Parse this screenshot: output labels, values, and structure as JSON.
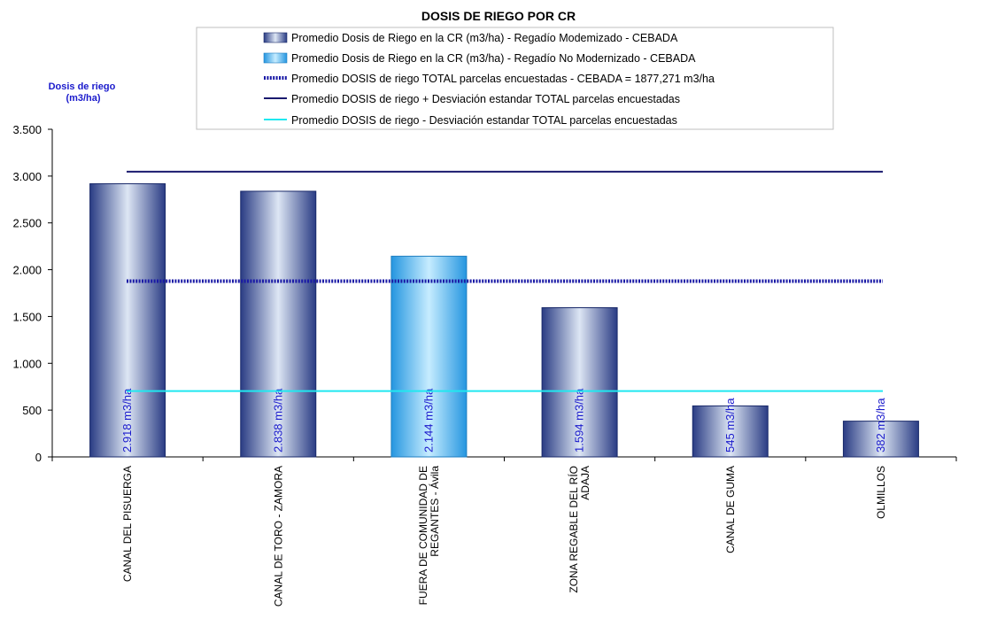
{
  "chart_data": {
    "type": "bar",
    "title": "DOSIS DE RIEGO POR CR",
    "ylabel_lines": [
      "Dosis de riego",
      "(m3/ha)"
    ],
    "ylim": [
      0,
      3500
    ],
    "yticks": [
      0,
      500,
      1000,
      1500,
      2000,
      2500,
      3000,
      3500
    ],
    "ytick_labels": [
      "0",
      "500",
      "1.000",
      "1.500",
      "2.000",
      "2.500",
      "3.000",
      "3.500"
    ],
    "categories": [
      [
        "CANAL DEL PISUERGA"
      ],
      [
        "CANAL DE TORO - ZAMORA"
      ],
      [
        "FUERA DE COMUNIDAD DE",
        "REGANTES - Ávila"
      ],
      [
        "ZONA REGABLE DEL RÍO",
        "ADAJA"
      ],
      [
        "CANAL DE GUMA"
      ],
      [
        "OLMILLOS"
      ]
    ],
    "series": [
      {
        "name": "Promedio Dosis de Riego en la CR (m3/ha) - Regadío Modemizado - CEBADA",
        "values": [
          2918,
          2838,
          null,
          1594,
          545,
          382
        ],
        "labels": [
          "2.918  m3/ha",
          "2.838  m3/ha",
          "",
          "1.594  m3/ha",
          "545  m3/ha",
          "382  m3/ha"
        ],
        "color": "#3b4f9a"
      },
      {
        "name": "Promedio Dosis de Riego en la CR (m3/ha) - Regadío No Modernizado - CEBADA",
        "values": [
          null,
          null,
          2144,
          null,
          null,
          null
        ],
        "labels": [
          "",
          "",
          "2.144  m3/ha",
          "",
          "",
          ""
        ],
        "color": "#38b0f0"
      }
    ],
    "reference_lines": [
      {
        "name": "Promedio DOSIS de riego TOTAL parcelas encuestadas - CEBADA = 1877,271 m3/ha",
        "value": 1877.271,
        "color": "#1a1aa6",
        "style": "beaded"
      },
      {
        "name": "Promedio DOSIS de riego + Desviación estandar TOTAL parcelas encuestadas",
        "value": 3047,
        "color": "#1a1a6e",
        "style": "solid"
      },
      {
        "name": "Promedio DOSIS de riego - Desviación estandar TOTAL parcelas encuestadas",
        "value": 703,
        "color": "#20e8f0",
        "style": "solid"
      }
    ],
    "legend_position": "top"
  }
}
